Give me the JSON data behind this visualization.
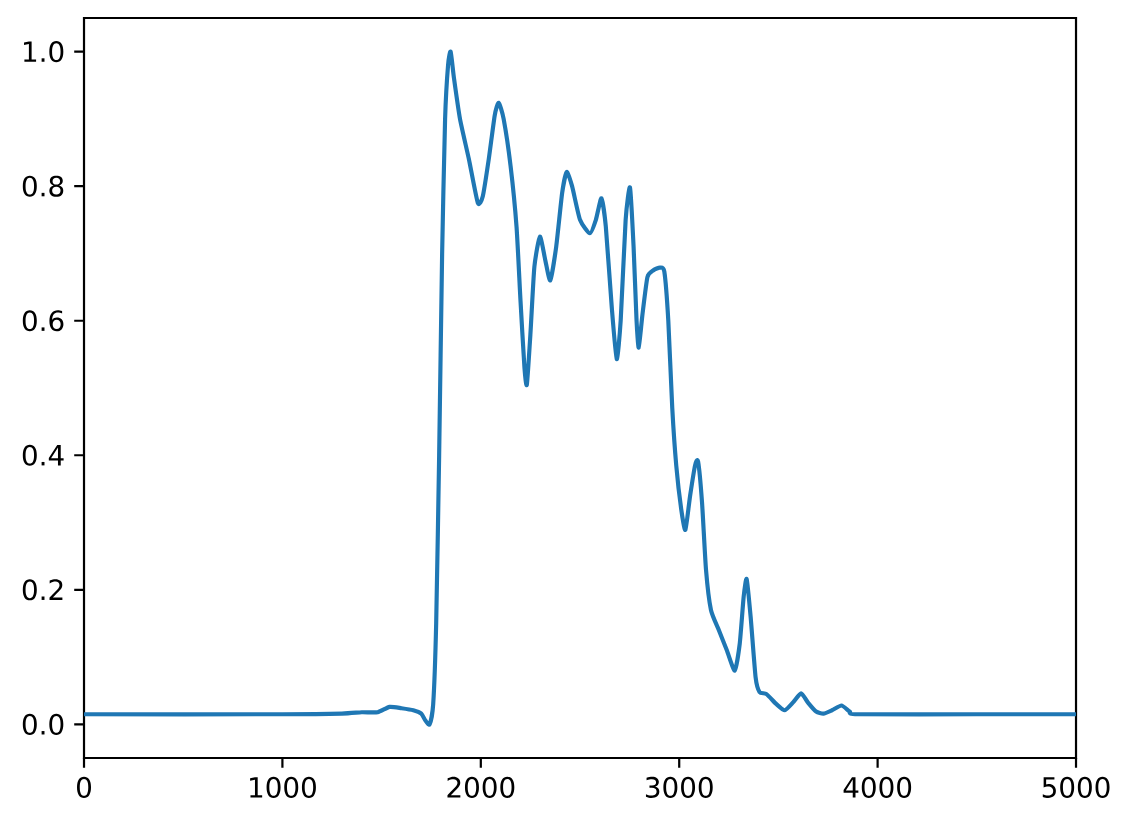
{
  "chart_data": {
    "type": "line",
    "color": "#1f77b4",
    "x": [
      0,
      1000,
      1300,
      1400,
      1480,
      1540,
      1600,
      1660,
      1700,
      1720,
      1742,
      1760,
      1775,
      1790,
      1805,
      1820,
      1835,
      1848,
      1865,
      1895,
      1940,
      1985,
      2010,
      2040,
      2070,
      2090,
      2115,
      2150,
      2180,
      2200,
      2220,
      2232,
      2250,
      2270,
      2298,
      2325,
      2350,
      2380,
      2410,
      2433,
      2460,
      2500,
      2550,
      2580,
      2608,
      2630,
      2660,
      2685,
      2705,
      2730,
      2752,
      2770,
      2785,
      2796,
      2815,
      2840,
      2870,
      2903,
      2925,
      2945,
      2965,
      2985,
      3010,
      3031,
      3055,
      3080,
      3095,
      3115,
      3135,
      3160,
      3200,
      3240,
      3280,
      3305,
      3325,
      3340,
      3360,
      3385,
      3405,
      3440,
      3490,
      3532,
      3575,
      3614,
      3650,
      3690,
      3727,
      3770,
      3818,
      3860,
      3900,
      4500,
      5000
    ],
    "values": [
      0.015,
      0.015,
      0.016,
      0.018,
      0.018,
      0.026,
      0.024,
      0.021,
      0.016,
      0.006,
      0.0,
      0.03,
      0.15,
      0.4,
      0.7,
      0.9,
      0.98,
      1.0,
      0.96,
      0.9,
      0.84,
      0.775,
      0.785,
      0.84,
      0.905,
      0.924,
      0.9,
      0.83,
      0.74,
      0.63,
      0.53,
      0.505,
      0.58,
      0.68,
      0.725,
      0.69,
      0.66,
      0.71,
      0.79,
      0.821,
      0.8,
      0.75,
      0.73,
      0.75,
      0.782,
      0.74,
      0.62,
      0.543,
      0.6,
      0.75,
      0.798,
      0.71,
      0.6,
      0.56,
      0.61,
      0.665,
      0.675,
      0.679,
      0.673,
      0.6,
      0.47,
      0.385,
      0.32,
      0.289,
      0.34,
      0.385,
      0.391,
      0.33,
      0.23,
      0.17,
      0.14,
      0.11,
      0.08,
      0.12,
      0.19,
      0.216,
      0.16,
      0.07,
      0.048,
      0.045,
      0.03,
      0.021,
      0.033,
      0.046,
      0.032,
      0.019,
      0.016,
      0.021,
      0.028,
      0.019,
      0.015,
      0.015,
      0.015
    ],
    "xlim": [
      0,
      5000
    ],
    "ylim": [
      -0.05,
      1.05
    ],
    "xticks": [
      0,
      1000,
      2000,
      3000,
      4000,
      5000
    ],
    "yticks": [
      {
        "value": 0,
        "label": "0.0"
      },
      {
        "value": 0.2,
        "label": "0.2"
      },
      {
        "value": 0.4,
        "label": "0.4"
      },
      {
        "value": 0.6,
        "label": "0.6"
      },
      {
        "value": 0.8,
        "label": "0.8"
      },
      {
        "value": 1,
        "label": "1.0"
      }
    ]
  }
}
